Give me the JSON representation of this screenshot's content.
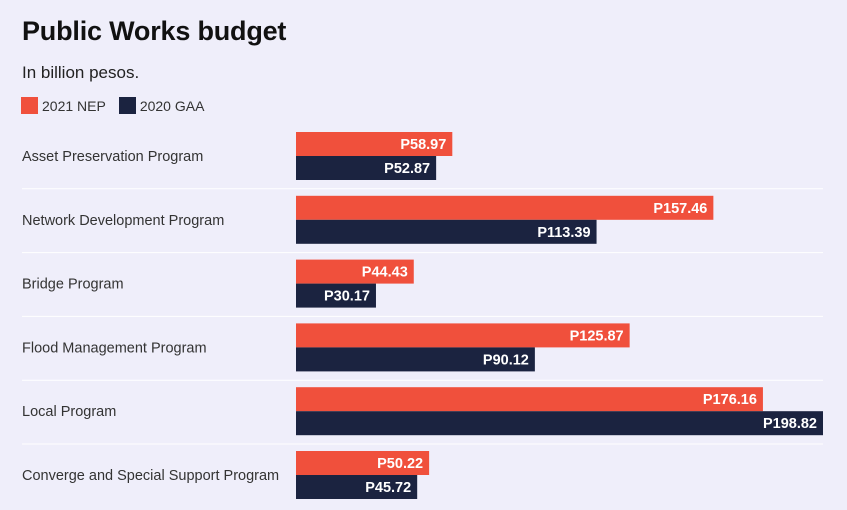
{
  "title": "Public Works budget",
  "subtitle": "In billion pesos.",
  "colors": {
    "nep": "#f0503c",
    "gaa": "#1b2340",
    "background": "#efeefa"
  },
  "chart_data": {
    "type": "bar",
    "orientation": "horizontal",
    "title": "Public Works budget",
    "subtitle": "In billion pesos.",
    "value_prefix": "P",
    "xlim": [
      0,
      198.82
    ],
    "grid": false,
    "legend_position": "top-left",
    "categories": [
      "Asset Preservation Program",
      "Network Development Program",
      "Bridge Program",
      "Flood Management Program",
      "Local Program",
      "Converge and Special Support Program"
    ],
    "series": [
      {
        "name": "2021 NEP",
        "color": "#f0503c",
        "values": [
          58.97,
          157.46,
          44.43,
          125.87,
          176.16,
          50.22
        ]
      },
      {
        "name": "2020 GAA",
        "color": "#1b2340",
        "values": [
          52.87,
          113.39,
          30.17,
          90.12,
          198.82,
          45.72
        ]
      }
    ]
  }
}
